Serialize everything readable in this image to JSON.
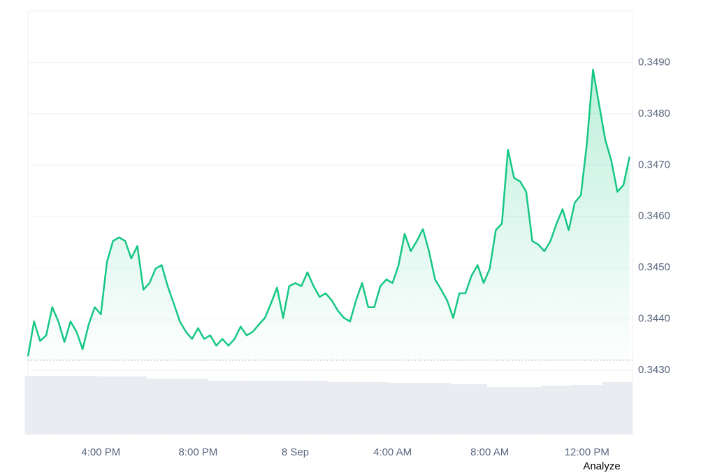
{
  "chart_data": {
    "type": "area-line",
    "color": "#16c784",
    "x": [
      0,
      1,
      2,
      3,
      4,
      5,
      6,
      7,
      8,
      9,
      10,
      11,
      12,
      13,
      14,
      15,
      16,
      17,
      18,
      19,
      20,
      21,
      22,
      23,
      24,
      25,
      26,
      27,
      28,
      29,
      30,
      31,
      32,
      33,
      34,
      35,
      36,
      37,
      38,
      39,
      40,
      41,
      42,
      43,
      44,
      45,
      46,
      47,
      48,
      49,
      50,
      51,
      52,
      53,
      54,
      55,
      56,
      57,
      58,
      59,
      60,
      61,
      62,
      63,
      64,
      65,
      66,
      67,
      68,
      69,
      70,
      71,
      72,
      73,
      74,
      75,
      76,
      77,
      78,
      79,
      80,
      81,
      82,
      83,
      84,
      85,
      86,
      87,
      88,
      89,
      90,
      91,
      92,
      93,
      94,
      95,
      96,
      97,
      98,
      99
    ],
    "values": [
      0.34327,
      0.34395,
      0.34357,
      0.34368,
      0.34423,
      0.34395,
      0.34355,
      0.34395,
      0.34375,
      0.34341,
      0.34389,
      0.34423,
      0.34409,
      0.34511,
      0.34552,
      0.34559,
      0.34552,
      0.34518,
      0.34542,
      0.34457,
      0.3447,
      0.34498,
      0.34505,
      0.34464,
      0.3443,
      0.34395,
      0.34375,
      0.34361,
      0.34382,
      0.34361,
      0.34368,
      0.34348,
      0.34361,
      0.34348,
      0.34361,
      0.34385,
      0.34368,
      0.34375,
      0.34389,
      0.34402,
      0.3443,
      0.34461,
      0.34402,
      0.34464,
      0.3447,
      0.34464,
      0.34491,
      0.34464,
      0.34443,
      0.3445,
      0.34436,
      0.34416,
      0.34402,
      0.34395,
      0.34436,
      0.3447,
      0.34423,
      0.34423,
      0.34464,
      0.34477,
      0.3447,
      0.34505,
      0.34566,
      0.34532,
      0.34552,
      0.34575,
      0.34532,
      0.34477,
      0.34457,
      0.34436,
      0.34402,
      0.3445,
      0.3445,
      0.34484,
      0.34505,
      0.3447,
      0.34498,
      0.34573,
      0.34586,
      0.3473,
      0.34675,
      0.34668,
      0.34648,
      0.34552,
      0.34545,
      0.34532,
      0.34552,
      0.34586,
      0.34614,
      0.34573,
      0.34627,
      0.34641,
      0.34743,
      0.34886,
      0.34818,
      0.3475,
      0.34709,
      0.34648,
      0.34661,
      0.34716
    ],
    "baseline": 0.3432,
    "xlim": [
      0,
      99.5
    ],
    "xticks": [
      {
        "value": 12,
        "label": "4:00 PM"
      },
      {
        "value": 28,
        "label": "8:00 PM"
      },
      {
        "value": 44,
        "label": "8 Sep"
      },
      {
        "value": 60,
        "label": "4:00 AM"
      },
      {
        "value": 76,
        "label": "8:00 AM"
      },
      {
        "value": 92,
        "label": "12:00 PM"
      }
    ],
    "ylim": [
      0.343,
      0.35
    ],
    "yticks": [
      {
        "value": 0.343,
        "label": "0.3430"
      },
      {
        "value": 0.344,
        "label": "0.3440"
      },
      {
        "value": 0.345,
        "label": "0.3450"
      },
      {
        "value": 0.346,
        "label": "0.3460"
      },
      {
        "value": 0.347,
        "label": "0.3470"
      },
      {
        "value": 0.348,
        "label": "0.3480"
      },
      {
        "value": 0.349,
        "label": "0.3490"
      }
    ],
    "grid": true,
    "volume": {
      "color": "#e9ecf0",
      "ylim": [
        0,
        85
      ],
      "values": [
        84,
        84,
        84,
        84,
        84,
        84,
        84,
        84,
        84,
        84,
        84,
        84,
        83,
        83,
        83,
        83,
        83,
        83,
        83,
        83,
        80,
        80,
        80,
        80,
        80,
        80,
        80,
        80,
        80,
        80,
        77,
        77,
        77,
        77,
        77,
        77,
        77,
        77,
        77,
        77,
        77,
        77,
        77,
        77,
        77,
        77,
        77,
        77,
        77,
        77,
        75,
        75,
        75,
        75,
        75,
        75,
        75,
        75,
        75,
        75,
        74,
        74,
        74,
        74,
        74,
        74,
        74,
        74,
        74,
        74,
        72,
        72,
        72,
        72,
        72,
        72,
        68,
        68,
        68,
        68,
        68,
        68,
        68,
        68,
        68,
        70,
        70,
        70,
        70,
        70,
        71,
        71,
        71,
        71,
        71,
        75,
        75,
        75,
        75,
        75
      ]
    },
    "action": "Analyze"
  }
}
